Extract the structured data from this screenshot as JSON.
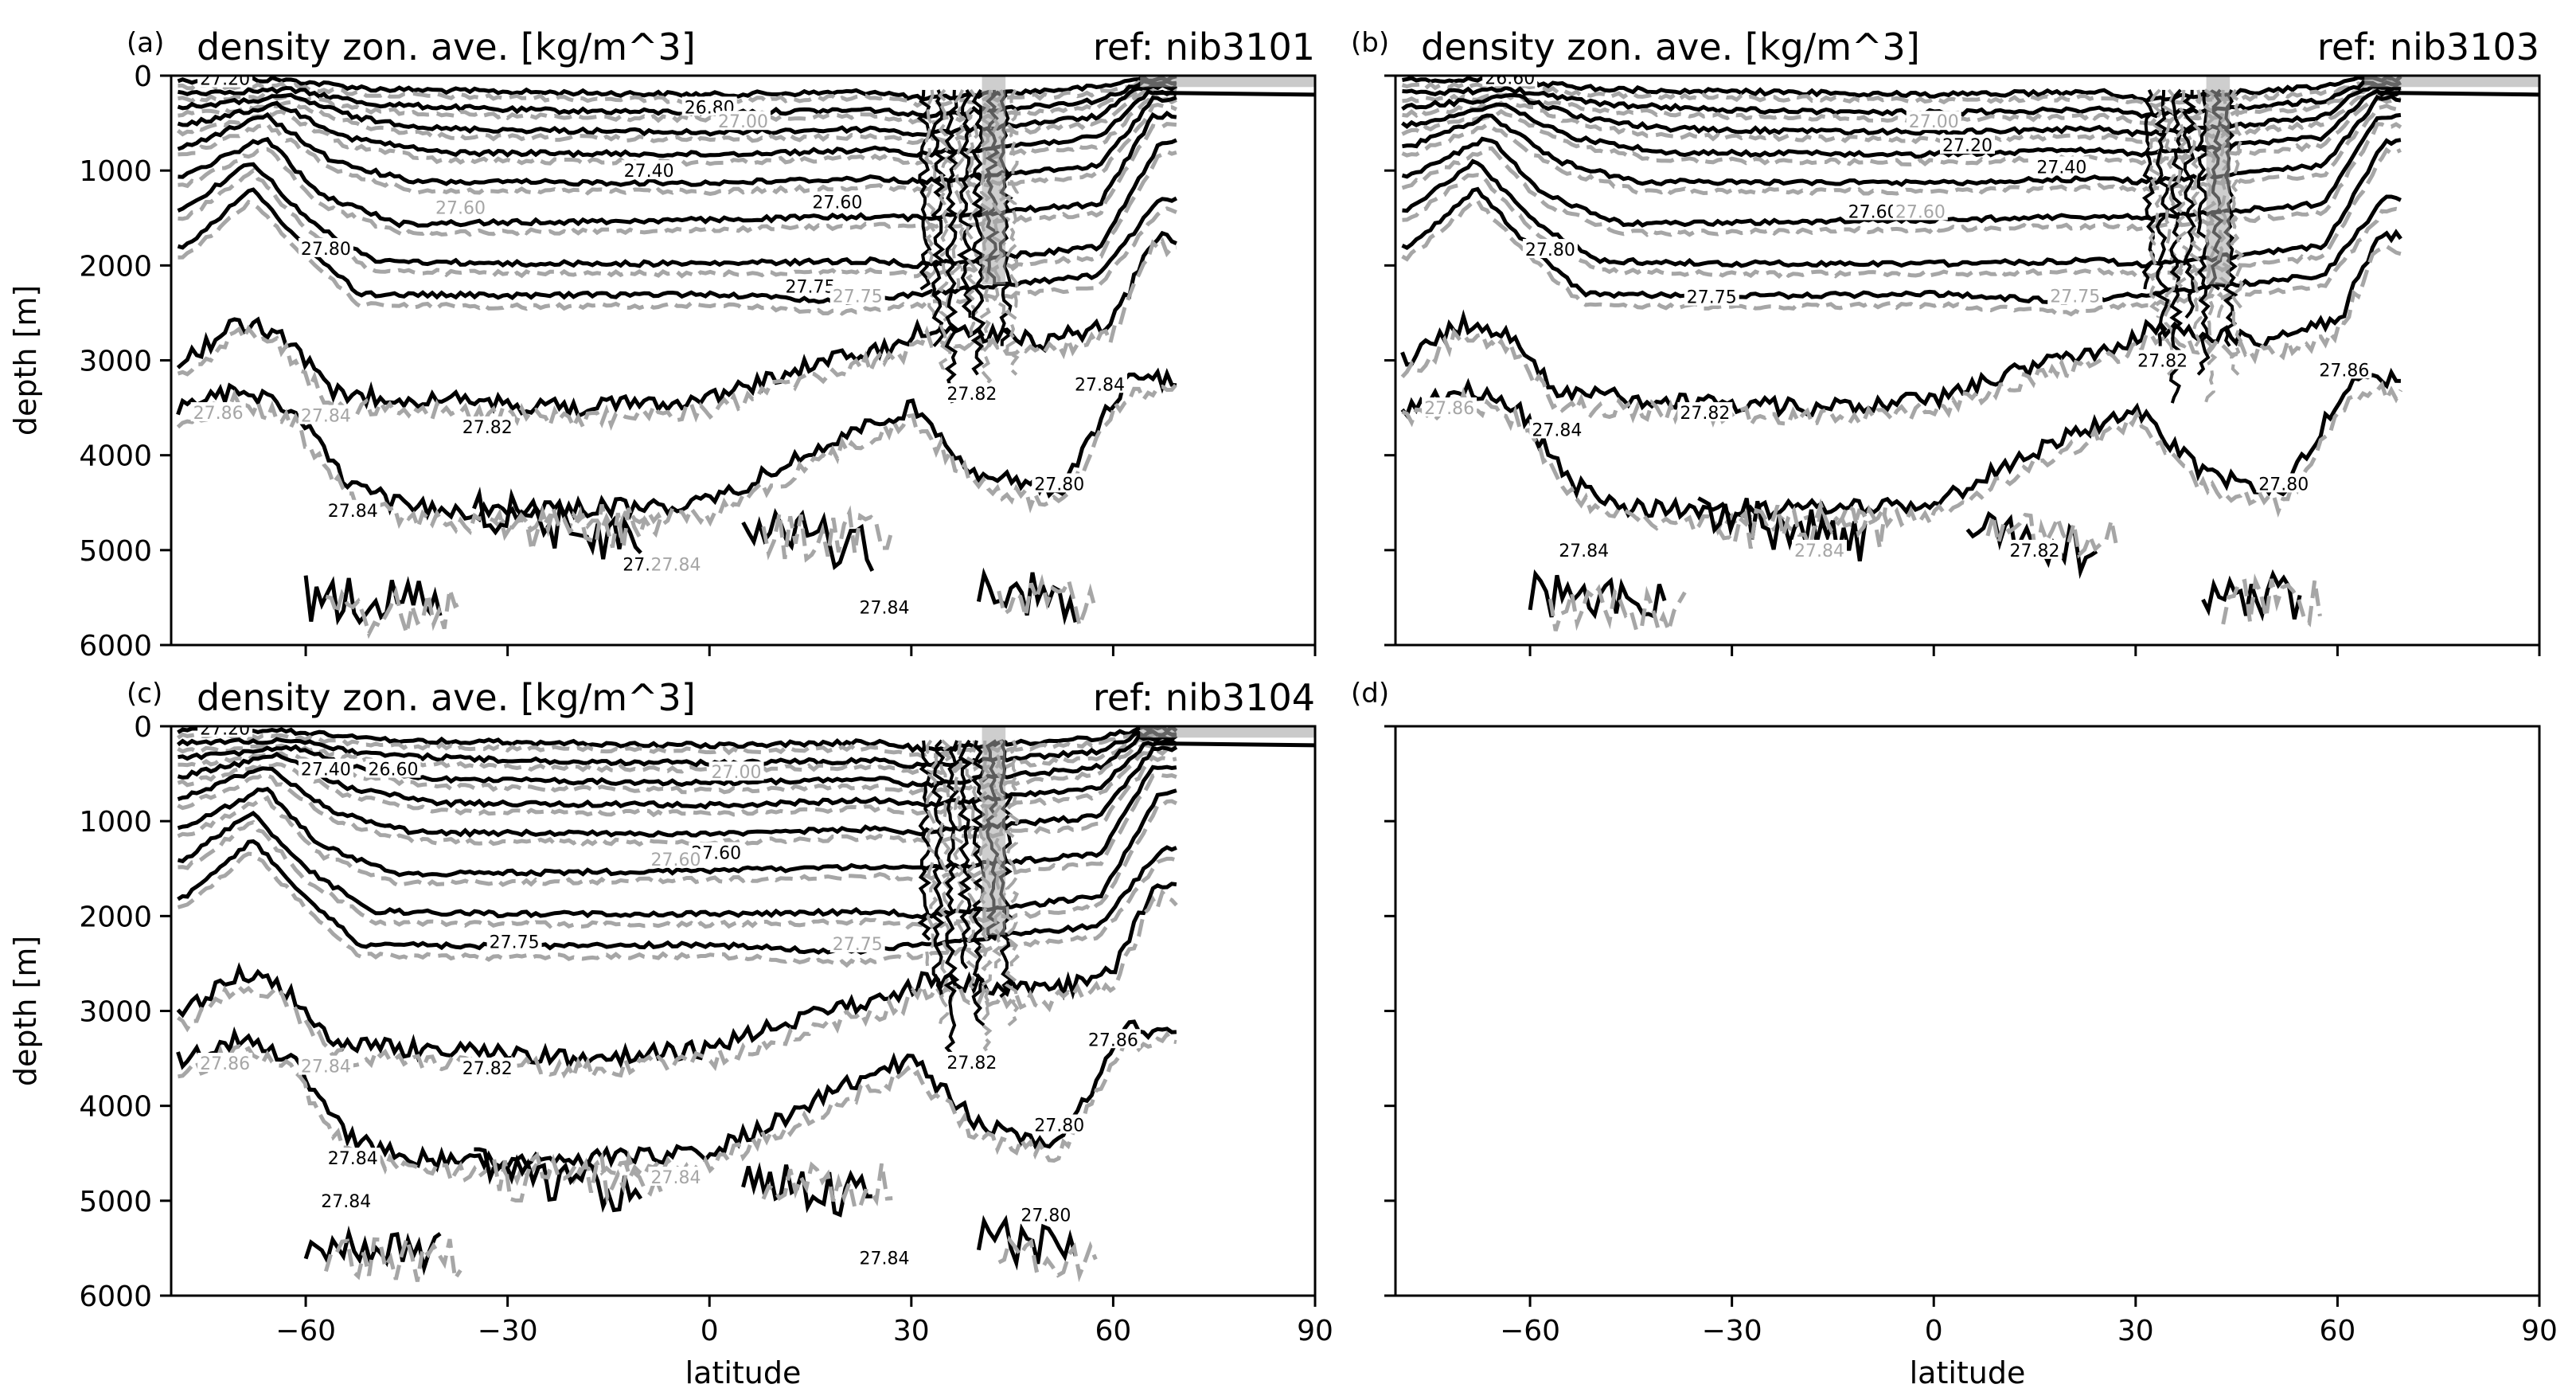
{
  "figure": {
    "colors": {
      "solid": "#000000",
      "dashed": "#a6a6a6",
      "background": "#ffffff"
    }
  },
  "chart_data": [
    {
      "type": "contour",
      "panel": "(a)",
      "title": "density zon. ave. [kg/m^3]",
      "ref": "ref: nib3101",
      "xlabel": "",
      "ylabel": "depth [m]",
      "xlim": [
        -80,
        90
      ],
      "ylim": [
        6000,
        0
      ],
      "x_ticks": [
        -60,
        -30,
        0,
        30,
        60,
        90
      ],
      "y_ticks": [
        0,
        1000,
        2000,
        3000,
        4000,
        5000,
        6000
      ],
      "show_x_tick_labels": false,
      "show_y_tick_labels": true,
      "contour_labels": [
        {
          "text": "27.20",
          "lat": -72,
          "depth": 30,
          "style": "solid"
        },
        {
          "text": "26.80",
          "lat": 0,
          "depth": 330,
          "style": "solid"
        },
        {
          "text": "27.00",
          "lat": 5,
          "depth": 480,
          "style": "dashed"
        },
        {
          "text": "27.40",
          "lat": -9,
          "depth": 1000,
          "style": "solid"
        },
        {
          "text": "27.60",
          "lat": -37,
          "depth": 1390,
          "style": "dashed"
        },
        {
          "text": "27.60",
          "lat": 19,
          "depth": 1330,
          "style": "solid"
        },
        {
          "text": "27.80",
          "lat": -57,
          "depth": 1820,
          "style": "solid"
        },
        {
          "text": "27.75",
          "lat": 15,
          "depth": 2220,
          "style": "solid"
        },
        {
          "text": "27.75",
          "lat": 22,
          "depth": 2320,
          "style": "dashed"
        },
        {
          "text": "27.82",
          "lat": -33,
          "depth": 3700,
          "style": "solid"
        },
        {
          "text": "27.86",
          "lat": -73,
          "depth": 3550,
          "style": "dashed"
        },
        {
          "text": "27.84",
          "lat": -57,
          "depth": 3580,
          "style": "dashed"
        },
        {
          "text": "27.84",
          "lat": -53,
          "depth": 4580,
          "style": "solid"
        },
        {
          "text": "27.8",
          "lat": -10,
          "depth": 5150,
          "style": "solid"
        },
        {
          "text": "27.84",
          "lat": -5,
          "depth": 5150,
          "style": "dashed"
        },
        {
          "text": "27.82",
          "lat": 39,
          "depth": 3350,
          "style": "solid"
        },
        {
          "text": "27.80",
          "lat": 52,
          "depth": 4300,
          "style": "solid"
        },
        {
          "text": "27.84",
          "lat": 58,
          "depth": 3250,
          "style": "solid"
        },
        {
          "text": "27.84",
          "lat": 26,
          "depth": 5600,
          "style": "solid"
        }
      ]
    },
    {
      "type": "contour",
      "panel": "(b)",
      "title": "density zon. ave. [kg/m^3]",
      "ref": "ref: nib3103",
      "xlabel": "",
      "ylabel": "",
      "xlim": [
        -80,
        90
      ],
      "ylim": [
        6000,
        0
      ],
      "x_ticks": [
        -60,
        -30,
        0,
        30,
        60,
        90
      ],
      "y_ticks": [
        0,
        1000,
        2000,
        3000,
        4000,
        5000,
        6000
      ],
      "show_x_tick_labels": false,
      "show_y_tick_labels": false,
      "contour_labels": [
        {
          "text": "26.60",
          "lat": -63,
          "depth": 20,
          "style": "solid"
        },
        {
          "text": "27.00",
          "lat": 0,
          "depth": 480,
          "style": "dashed"
        },
        {
          "text": "27.20",
          "lat": 5,
          "depth": 730,
          "style": "solid"
        },
        {
          "text": "27.40",
          "lat": 19,
          "depth": 960,
          "style": "solid"
        },
        {
          "text": "27.60",
          "lat": -9,
          "depth": 1430,
          "style": "solid"
        },
        {
          "text": "27.60",
          "lat": -2,
          "depth": 1430,
          "style": "dashed"
        },
        {
          "text": "27.80",
          "lat": -57,
          "depth": 1830,
          "style": "solid"
        },
        {
          "text": "27.75",
          "lat": -33,
          "depth": 2330,
          "style": "solid"
        },
        {
          "text": "27.75",
          "lat": 21,
          "depth": 2320,
          "style": "dashed"
        },
        {
          "text": "27.82",
          "lat": -34,
          "depth": 3550,
          "style": "solid"
        },
        {
          "text": "27.86",
          "lat": -72,
          "depth": 3500,
          "style": "dashed"
        },
        {
          "text": "27.84",
          "lat": -56,
          "depth": 3730,
          "style": "solid"
        },
        {
          "text": "27.84",
          "lat": -52,
          "depth": 5000,
          "style": "solid"
        },
        {
          "text": "27.84",
          "lat": -17,
          "depth": 5000,
          "style": "dashed"
        },
        {
          "text": "27.82",
          "lat": 15,
          "depth": 5000,
          "style": "solid"
        },
        {
          "text": "27.80",
          "lat": 52,
          "depth": 4300,
          "style": "solid"
        },
        {
          "text": "27.86",
          "lat": 61,
          "depth": 3100,
          "style": "solid"
        },
        {
          "text": "27.82",
          "lat": 34,
          "depth": 3000,
          "style": "solid"
        }
      ]
    },
    {
      "type": "contour",
      "panel": "(c)",
      "title": "density zon. ave. [kg/m^3]",
      "ref": "ref: nib3104",
      "xlabel": "latitude",
      "ylabel": "depth [m]",
      "xlim": [
        -80,
        90
      ],
      "ylim": [
        6000,
        0
      ],
      "x_ticks": [
        -60,
        -30,
        0,
        30,
        60,
        90
      ],
      "y_ticks": [
        0,
        1000,
        2000,
        3000,
        4000,
        5000,
        6000
      ],
      "show_x_tick_labels": true,
      "show_y_tick_labels": true,
      "contour_labels": [
        {
          "text": "27.20",
          "lat": -72,
          "depth": 20,
          "style": "solid"
        },
        {
          "text": "26.60",
          "lat": -47,
          "depth": 450,
          "style": "solid"
        },
        {
          "text": "27.40",
          "lat": -57,
          "depth": 450,
          "style": "solid"
        },
        {
          "text": "27.00",
          "lat": 4,
          "depth": 480,
          "style": "dashed"
        },
        {
          "text": "27.60",
          "lat": 1,
          "depth": 1330,
          "style": "solid"
        },
        {
          "text": "27.60",
          "lat": -5,
          "depth": 1400,
          "style": "dashed"
        },
        {
          "text": "27.75",
          "lat": -29,
          "depth": 2270,
          "style": "solid"
        },
        {
          "text": "27.75",
          "lat": 22,
          "depth": 2290,
          "style": "dashed"
        },
        {
          "text": "27.82",
          "lat": -33,
          "depth": 3600,
          "style": "solid"
        },
        {
          "text": "27.86",
          "lat": -72,
          "depth": 3550,
          "style": "dashed"
        },
        {
          "text": "27.84",
          "lat": -57,
          "depth": 3580,
          "style": "dashed"
        },
        {
          "text": "27.84",
          "lat": -53,
          "depth": 4550,
          "style": "solid"
        },
        {
          "text": "27.84",
          "lat": -54,
          "depth": 5000,
          "style": "solid"
        },
        {
          "text": "27.84",
          "lat": -5,
          "depth": 4750,
          "style": "dashed"
        },
        {
          "text": "27.82",
          "lat": 39,
          "depth": 3540,
          "style": "solid"
        },
        {
          "text": "27.80",
          "lat": 52,
          "depth": 4200,
          "style": "solid"
        },
        {
          "text": "27.80",
          "lat": 50,
          "depth": 5150,
          "style": "solid"
        },
        {
          "text": "27.86",
          "lat": 60,
          "depth": 3300,
          "style": "solid"
        },
        {
          "text": "27.84",
          "lat": 26,
          "depth": 5600,
          "style": "solid"
        }
      ]
    },
    {
      "type": "empty",
      "panel": "(d)",
      "title": "",
      "ref": "",
      "xlabel": "latitude",
      "ylabel": "",
      "xlim": [
        -80,
        90
      ],
      "ylim": [
        6000,
        0
      ],
      "x_ticks": [
        -60,
        -30,
        0,
        30,
        60,
        90
      ],
      "y_ticks": [
        0,
        1000,
        2000,
        3000,
        4000,
        5000,
        6000
      ],
      "show_x_tick_labels": true,
      "show_y_tick_labels": false,
      "contour_labels": []
    }
  ]
}
